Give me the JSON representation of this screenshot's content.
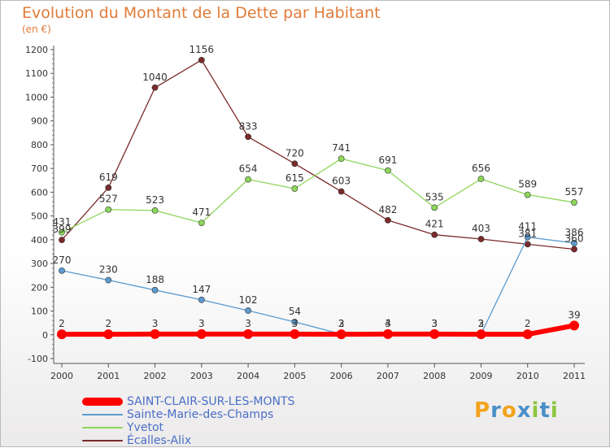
{
  "header": {
    "title": "Evolution du Montant de la Dette par Habitant",
    "subtitle": "(en €)"
  },
  "logo": {
    "letters": [
      "P",
      "r",
      "o",
      "x",
      "i",
      "t",
      "i"
    ],
    "colors": [
      "#f2a31b",
      "#4a90c8",
      "#f2a31b",
      "#4a90c8",
      "#8cc63f",
      "#4a90c8",
      "#8cc63f"
    ]
  },
  "chart_data": {
    "type": "line",
    "x": [
      "2000",
      "2001",
      "2002",
      "2003",
      "2004",
      "2005",
      "2006",
      "2007",
      "2008",
      "2009",
      "2010",
      "2011"
    ],
    "ylim": [
      -100,
      1200
    ],
    "yticks": [
      "-100",
      "0",
      "100",
      "200",
      "300",
      "400",
      "500",
      "600",
      "700",
      "800",
      "900",
      "1000",
      "1100",
      "1200"
    ],
    "grid": false,
    "legend_position": "bottom-left",
    "series": [
      {
        "name": "Écalles-Alix",
        "color": "#7b2a2a",
        "values": [
          399,
          619,
          1040,
          1156,
          833,
          720,
          603,
          482,
          421,
          403,
          381,
          360
        ],
        "labels": [
          "399",
          "619",
          "1040",
          "1156",
          "833",
          "720",
          "603",
          "482",
          "421",
          "403",
          "381",
          "360"
        ]
      },
      {
        "name": "Yvetot",
        "color": "#8cd65a",
        "values": [
          431,
          527,
          523,
          471,
          654,
          615,
          741,
          691,
          535,
          656,
          589,
          557
        ],
        "labels": [
          "431",
          "527",
          "523",
          "471",
          "654",
          "615",
          "741",
          "691",
          "535",
          "656",
          "589",
          "557"
        ]
      },
      {
        "name": "Sainte-Marie-des-Champs",
        "color": "#5b9bd0",
        "values": [
          270,
          230,
          188,
          147,
          102,
          54,
          3,
          4,
          3,
          3,
          411,
          386
        ],
        "labels": [
          "270",
          "230",
          "188",
          "147",
          "102",
          "54",
          "3",
          "4",
          "3",
          "3",
          "411",
          "386"
        ]
      },
      {
        "name": "SAINT-CLAIR-SUR-LES-MONTS",
        "color": "#ff0000",
        "values": [
          2,
          2,
          3,
          3,
          3,
          3,
          2,
          3,
          3,
          2,
          2,
          39
        ],
        "labels": [
          "2",
          "2",
          "3",
          "3",
          "3",
          "3",
          "2",
          "3",
          "3",
          "2",
          "2",
          "39"
        ]
      }
    ],
    "legend": [
      {
        "name": "SAINT-CLAIR-SUR-LES-MONTS",
        "color": "#ff0000",
        "text_color": "#4a6fc8"
      },
      {
        "name": "Sainte-Marie-des-Champs",
        "color": "#5b9bd0",
        "text_color": "#4a6fc8"
      },
      {
        "name": "Yvetot",
        "color": "#8cd65a",
        "text_color": "#4a6fc8"
      },
      {
        "name": "Écalles-Alix",
        "color": "#7b2a2a",
        "text_color": "#4a6fc8"
      }
    ]
  }
}
